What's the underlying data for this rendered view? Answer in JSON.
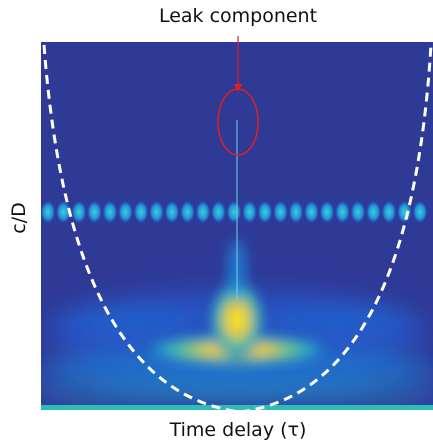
{
  "annotation": "Leak component",
  "x_label": "Time delay (τ)",
  "y_label": "c/D"
}
